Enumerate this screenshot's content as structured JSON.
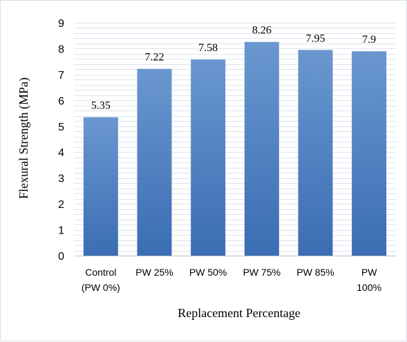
{
  "chart_data": {
    "type": "bar",
    "categories": [
      [
        "Control",
        "(PW 0%)"
      ],
      [
        "PW 25%"
      ],
      [
        "PW 50%"
      ],
      [
        "PW 75%"
      ],
      [
        "PW 85%"
      ],
      [
        "PW",
        "100%"
      ]
    ],
    "values": [
      5.35,
      7.22,
      7.58,
      8.26,
      7.95,
      7.9
    ],
    "data_labels": [
      "5.35",
      "7.22",
      "7.58",
      "8.26",
      "7.95",
      "7.9"
    ],
    "xlabel": "Replacement Percentage",
    "ylabel": "Flexural Strength (MPa)",
    "ylim": [
      0,
      9
    ],
    "yticks": [
      0,
      1,
      2,
      3,
      4,
      5,
      6,
      7,
      8,
      9
    ],
    "grid": "horizontal minor lines",
    "legend": "none",
    "colors": {
      "bar_top": "#6a97cf",
      "bar_bottom": "#3b6db4",
      "grid": "#dde4ef",
      "axis": "#bfbfbf"
    }
  }
}
